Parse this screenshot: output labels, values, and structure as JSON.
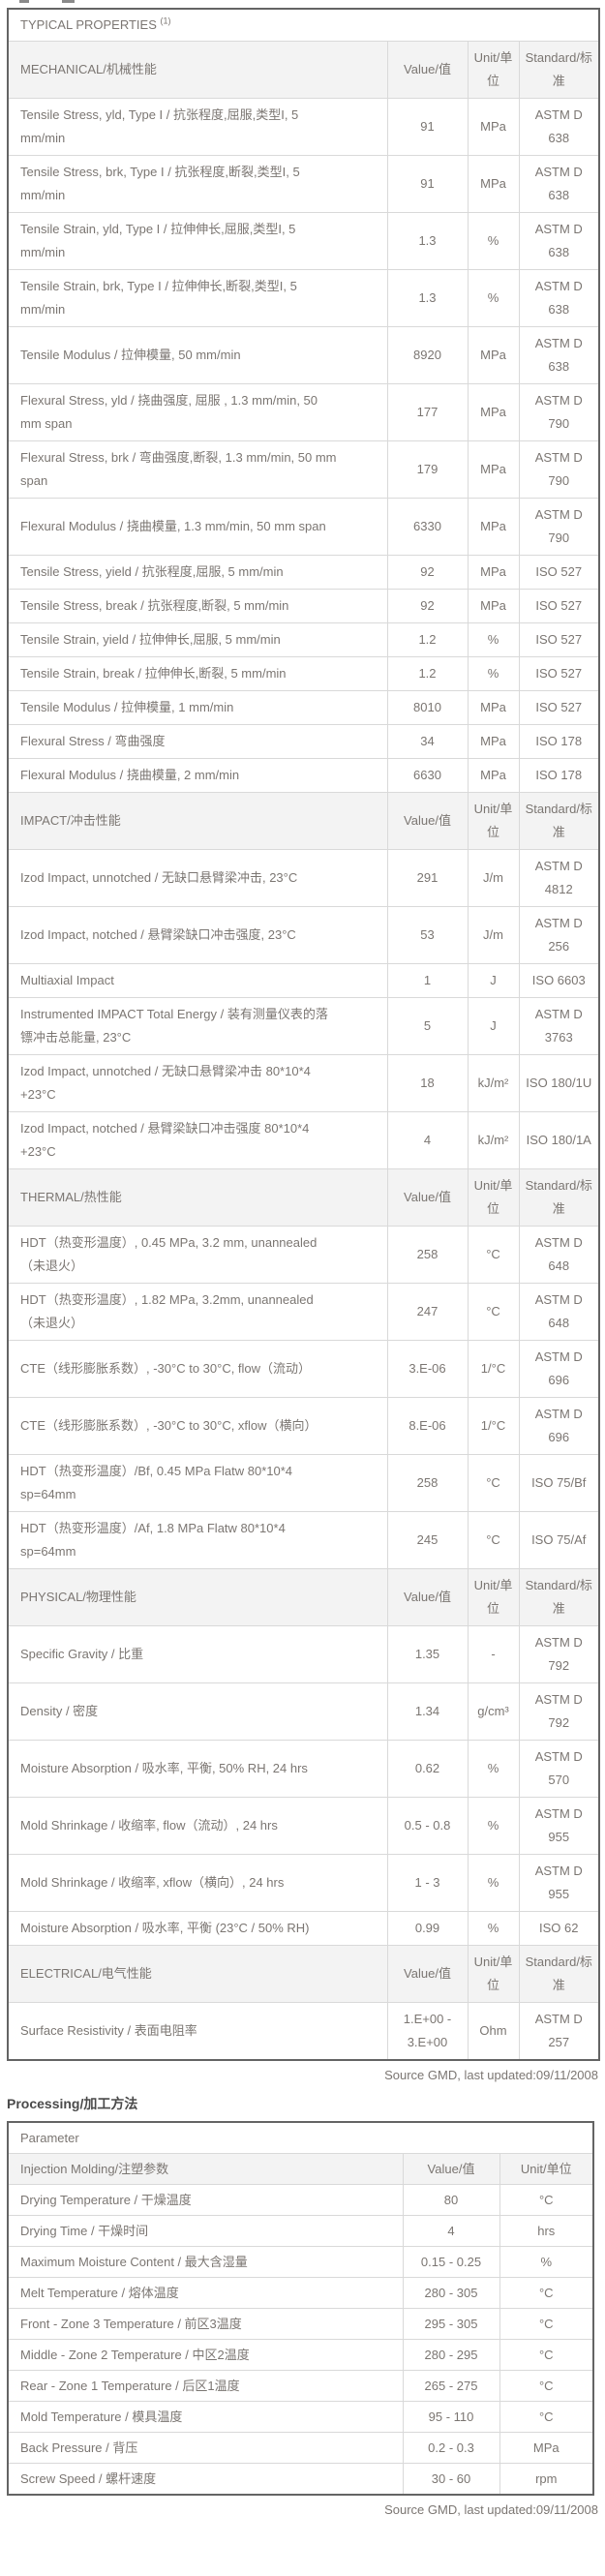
{
  "properties_table": {
    "title": "TYPICAL PROPERTIES",
    "title_sup": "(1)",
    "value_header": "Value/值",
    "unit_header": "Unit/单位",
    "standard_header": "Standard/标准",
    "sections": [
      {
        "name": "MECHANICAL/机械性能",
        "rows": [
          {
            "property": "Tensile Stress, yld, Type I / 抗张程度,屈服,类型I, 5 mm/min",
            "value": "91",
            "unit": "MPa",
            "standard": "ASTM D 638"
          },
          {
            "property": "Tensile Stress, brk, Type I / 抗张程度,断裂,类型I, 5 mm/min",
            "value": "91",
            "unit": "MPa",
            "standard": "ASTM D 638"
          },
          {
            "property": "Tensile Strain, yld, Type I / 拉伸伸长,屈服,类型I, 5 mm/min",
            "value": "1.3",
            "unit": "%",
            "standard": "ASTM D 638"
          },
          {
            "property": "Tensile Strain, brk, Type I / 拉伸伸长,断裂,类型I, 5 mm/min",
            "value": "1.3",
            "unit": "%",
            "standard": "ASTM D 638"
          },
          {
            "property": "Tensile Modulus / 拉伸模量, 50 mm/min",
            "value": "8920",
            "unit": "MPa",
            "standard": "ASTM D 638"
          },
          {
            "property": "Flexural Stress, yld / 挠曲强度, 屈服 , 1.3 mm/min, 50 mm span",
            "value": "177",
            "unit": "MPa",
            "standard": "ASTM D 790"
          },
          {
            "property": "Flexural Stress, brk / 弯曲强度,断裂, 1.3 mm/min, 50 mm span",
            "value": "179",
            "unit": "MPa",
            "standard": "ASTM D 790"
          },
          {
            "property": "Flexural Modulus / 挠曲模量, 1.3 mm/min, 50 mm span",
            "value": "6330",
            "unit": "MPa",
            "standard": "ASTM D 790"
          },
          {
            "property": "Tensile Stress, yield / 抗张程度,屈服, 5 mm/min",
            "value": "92",
            "unit": "MPa",
            "standard": "ISO 527"
          },
          {
            "property": "Tensile Stress, break / 抗张程度,断裂, 5 mm/min",
            "value": "92",
            "unit": "MPa",
            "standard": "ISO 527"
          },
          {
            "property": "Tensile Strain, yield / 拉伸伸长,屈服, 5 mm/min",
            "value": "1.2",
            "unit": "%",
            "standard": "ISO 527"
          },
          {
            "property": "Tensile Strain, break / 拉伸伸长,断裂, 5 mm/min",
            "value": "1.2",
            "unit": "%",
            "standard": "ISO 527"
          },
          {
            "property": "Tensile Modulus / 拉伸模量, 1 mm/min",
            "value": "8010",
            "unit": "MPa",
            "standard": "ISO 527"
          },
          {
            "property": "Flexural Stress / 弯曲强度",
            "value": "34",
            "unit": "MPa",
            "standard": "ISO 178"
          },
          {
            "property": "Flexural Modulus / 挠曲模量, 2 mm/min",
            "value": "6630",
            "unit": "MPa",
            "standard": "ISO 178"
          }
        ]
      },
      {
        "name": "IMPACT/冲击性能",
        "rows": [
          {
            "property": "Izod Impact, unnotched / 无缺口悬臂梁冲击, 23°C",
            "value": "291",
            "unit": "J/m",
            "standard": "ASTM D 4812"
          },
          {
            "property": "Izod Impact, notched / 悬臂梁缺口冲击强度, 23°C",
            "value": "53",
            "unit": "J/m",
            "standard": "ASTM D 256"
          },
          {
            "property": "Multiaxial Impact",
            "value": "1",
            "unit": "J",
            "standard": "ISO 6603"
          },
          {
            "property": "Instrumented IMPACT Total Energy / 装有测量仪表的落镖冲击总能量, 23°C",
            "value": "5",
            "unit": "J",
            "standard": "ASTM D 3763"
          },
          {
            "property": "Izod Impact, unnotched / 无缺口悬臂梁冲击 80*10*4 +23°C",
            "value": "18",
            "unit": "kJ/m²",
            "standard": "ISO 180/1U"
          },
          {
            "property": "Izod Impact, notched / 悬臂梁缺口冲击强度 80*10*4 +23°C",
            "value": "4",
            "unit": "kJ/m²",
            "standard": "ISO 180/1A"
          }
        ]
      },
      {
        "name": "THERMAL/热性能",
        "rows": [
          {
            "property": "HDT（热变形温度）, 0.45 MPa, 3.2 mm, unannealed（未退火）",
            "value": "258",
            "unit": "°C",
            "standard": "ASTM D 648"
          },
          {
            "property": "HDT（热变形温度）, 1.82 MPa, 3.2mm, unannealed（未退火）",
            "value": "247",
            "unit": "°C",
            "standard": "ASTM D 648"
          },
          {
            "property": "CTE（线形膨胀系数）, -30°C to 30°C, flow（流动）",
            "value": "3.E-06",
            "unit": "1/°C",
            "standard": "ASTM D 696"
          },
          {
            "property": "CTE（线形膨胀系数）, -30°C to 30°C, xflow（横向）",
            "value": "8.E-06",
            "unit": "1/°C",
            "standard": "ASTM D 696"
          },
          {
            "property": "HDT（热变形温度）/Bf, 0.45 MPa Flatw 80*10*4 sp=64mm",
            "value": "258",
            "unit": "°C",
            "standard": "ISO 75/Bf"
          },
          {
            "property": "HDT（热变形温度）/Af, 1.8 MPa Flatw 80*10*4 sp=64mm",
            "value": "245",
            "unit": "°C",
            "standard": "ISO 75/Af"
          }
        ]
      },
      {
        "name": "PHYSICAL/物理性能",
        "rows": [
          {
            "property": "Specific Gravity / 比重",
            "value": "1.35",
            "unit": "-",
            "standard": "ASTM D 792"
          },
          {
            "property": "Density / 密度",
            "value": "1.34",
            "unit": "g/cm³",
            "standard": "ASTM D 792"
          },
          {
            "property": "Moisture Absorption / 吸水率, 平衡, 50% RH, 24 hrs",
            "value": "0.62",
            "unit": "%",
            "standard": "ASTM D 570"
          },
          {
            "property": "Mold Shrinkage / 收缩率, flow（流动）, 24 hrs",
            "value": "0.5 - 0.8",
            "unit": "%",
            "standard": "ASTM D 955"
          },
          {
            "property": "Mold Shrinkage / 收缩率, xflow（横向）, 24 hrs",
            "value": "1 - 3",
            "unit": "%",
            "standard": "ASTM D 955"
          },
          {
            "property": "Moisture Absorption / 吸水率, 平衡 (23°C / 50% RH)",
            "value": "0.99",
            "unit": "%",
            "standard": "ISO 62"
          }
        ]
      },
      {
        "name": "ELECTRICAL/电气性能",
        "rows": [
          {
            "property": "Surface Resistivity / 表面电阻率",
            "value": "1.E+00 - 3.E+00",
            "unit": "Ohm",
            "standard": "ASTM D 257"
          }
        ]
      }
    ],
    "source": "Source GMD, last updated:09/11/2008"
  },
  "processing_table": {
    "title": "Processing/加工方法",
    "param_header": "Parameter",
    "subheader": "Injection Molding/注塑参数",
    "value_header": "Value/值",
    "unit_header": "Unit/单位",
    "rows": [
      {
        "parameter": "Drying Temperature / 干燥温度",
        "value": "80",
        "unit": "°C"
      },
      {
        "parameter": "Drying Time / 干燥时间",
        "value": "4",
        "unit": "hrs"
      },
      {
        "parameter": "Maximum Moisture Content / 最大含湿量",
        "value": "0.15 - 0.25",
        "unit": "%"
      },
      {
        "parameter": "Melt Temperature / 熔体温度",
        "value": "280 - 305",
        "unit": "°C"
      },
      {
        "parameter": "Front - Zone 3 Temperature / 前区3温度",
        "value": "295 - 305",
        "unit": "°C"
      },
      {
        "parameter": "Middle - Zone 2 Temperature / 中区2温度",
        "value": "280 - 295",
        "unit": "°C"
      },
      {
        "parameter": "Rear - Zone 1 Temperature / 后区1温度",
        "value": "265 - 275",
        "unit": "°C"
      },
      {
        "parameter": "Mold Temperature / 模具温度",
        "value": "95 - 110",
        "unit": "°C"
      },
      {
        "parameter": "Back Pressure / 背压",
        "value": "0.2 - 0.3",
        "unit": "MPa"
      },
      {
        "parameter": "Screw Speed / 螺杆速度",
        "value": "30 - 60",
        "unit": "rpm"
      }
    ],
    "source": "Source GMD, last updated:09/11/2008"
  }
}
